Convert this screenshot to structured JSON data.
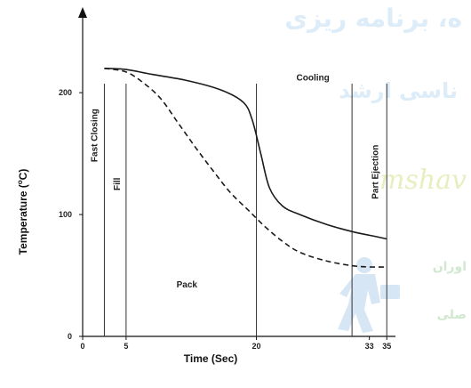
{
  "chart_data": {
    "type": "line",
    "xlabel": "Time (Sec)",
    "ylabel": "Temperature (°C)",
    "ylabel_parts": {
      "main": "Temperature  (",
      "sup": "o",
      "unit": "C)"
    },
    "xlim": [
      0,
      36
    ],
    "ylim": [
      0,
      260
    ],
    "x_ticks": [
      {
        "value": 0,
        "label": "0"
      },
      {
        "value": 5,
        "label": "5"
      },
      {
        "value": 20,
        "label": "20"
      },
      {
        "value": 33,
        "label": "33"
      },
      {
        "value": 35,
        "label": "35"
      }
    ],
    "y_ticks": [
      {
        "value": 0,
        "label": "0"
      },
      {
        "value": 100,
        "label": "100"
      },
      {
        "value": 200,
        "label": "200"
      }
    ],
    "phase_lines": [
      2.5,
      5,
      20,
      31,
      35
    ],
    "phase_labels": [
      {
        "text": "Fast Closing",
        "x": 1.3,
        "y": 165,
        "orientation": "vertical"
      },
      {
        "text": "Fill",
        "x": 3.9,
        "y": 125,
        "orientation": "vertical"
      },
      {
        "text": "Pack",
        "x": 12,
        "y": 40,
        "orientation": "horizontal"
      },
      {
        "text": "Cooling",
        "x": 26.5,
        "y": 210,
        "orientation": "horizontal"
      },
      {
        "text": "Part Ejection",
        "x": 33.6,
        "y": 135,
        "orientation": "vertical"
      }
    ],
    "series": [
      {
        "style": "solid",
        "x": [
          2.5,
          5,
          8,
          12,
          16,
          18.5,
          19.5,
          20.5,
          21.5,
          23,
          25,
          28,
          31,
          33,
          35
        ],
        "y": [
          220,
          219,
          215,
          210,
          202,
          192,
          178,
          150,
          122,
          107,
          100,
          92,
          86,
          83,
          80
        ]
      },
      {
        "style": "dashed",
        "x": [
          2.5,
          5,
          7,
          9,
          11,
          13,
          15,
          17,
          19,
          21,
          23,
          25,
          28,
          31,
          33,
          35
        ],
        "y": [
          220,
          217,
          208,
          195,
          175,
          155,
          136,
          118,
          104,
          90,
          78,
          69,
          62,
          58,
          57,
          57
        ]
      }
    ]
  },
  "watermark": {
    "line1": "ه، برنامه ریزی",
    "line2": "ناسی ارشد",
    "brand": "mshav",
    "side1": "اوران",
    "side2": "صلی"
  },
  "colors": {
    "axis": "#111111",
    "series": "#1a1a1a",
    "watermark_text": "#dcecf8",
    "watermark_brand": "#e6efc0",
    "watermark_side": "#cfe8cf"
  }
}
